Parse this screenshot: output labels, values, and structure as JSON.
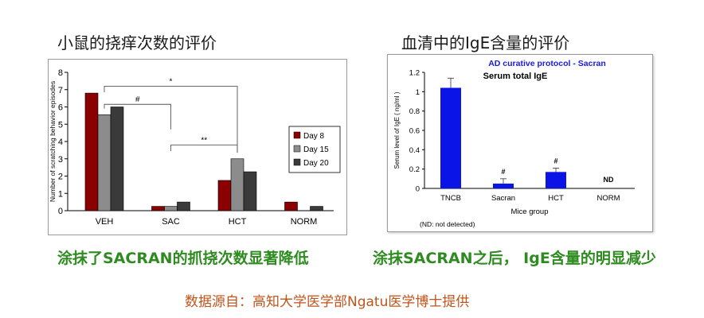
{
  "headings": {
    "left": "小鼠的挠痒次数的评价",
    "right": "血清中的IgE含量的评价"
  },
  "captions": {
    "left": "涂抹了SACRAN的抓挠次数显著降低",
    "right": "涂抹SACRAN之后， IgE含量的明显减少"
  },
  "source": "数据源自：高知大学医学部Ngatu医学博士提供",
  "chart_data": [
    {
      "type": "bar",
      "title": "",
      "ylabel": "Number of scratching behavior episodes",
      "xlabel": "",
      "categories": [
        "VEH",
        "SAC",
        "HCT",
        "NORM"
      ],
      "ylim": [
        0,
        8
      ],
      "yticks": [
        "0",
        "1",
        "2",
        "3",
        "4",
        "5",
        "6",
        "7",
        "8"
      ],
      "series": [
        {
          "name": "Day 8",
          "color": "#8b0000",
          "values": [
            6.8,
            0.25,
            1.75,
            0.5
          ]
        },
        {
          "name": "Day 15",
          "color": "#8c8c8c",
          "values": [
            5.55,
            0.25,
            3.0,
            0.0
          ]
        },
        {
          "name": "Day 20",
          "color": "#3a3a3a",
          "values": [
            6.0,
            0.5,
            2.25,
            0.25
          ]
        }
      ],
      "legend_position": "right",
      "annotations": [
        {
          "label": "*",
          "from": "VEH",
          "to": "HCT"
        },
        {
          "label": "#",
          "from": "VEH",
          "to": "SAC"
        },
        {
          "label": "**",
          "from": "SAC",
          "to": "HCT"
        }
      ]
    },
    {
      "type": "bar",
      "title": "AD curative protocol - Sacran",
      "subtitle": "Serum total IgE",
      "ylabel": "Serum level of IgE ( ng/ml )",
      "xlabel": "Mice group",
      "categories": [
        "TNCB",
        "Sacran",
        "HCT",
        "NORM"
      ],
      "ylim": [
        0,
        1.2
      ],
      "yticks": [
        "0",
        "0.2",
        "0.4",
        "0.6",
        "0.8",
        "1",
        "1.2"
      ],
      "values": [
        1.04,
        0.05,
        0.17,
        0
      ],
      "errors": [
        0.1,
        0.05,
        0.04,
        0
      ],
      "bar_labels": [
        "",
        "#",
        "#",
        "ND"
      ],
      "color": "#0a14e6",
      "note": "(ND: not detected)"
    }
  ]
}
